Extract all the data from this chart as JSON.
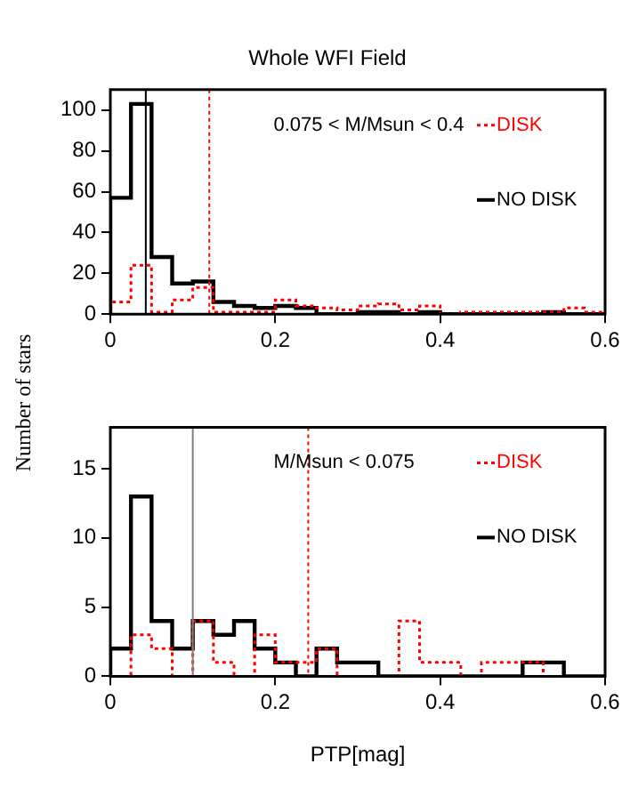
{
  "chart_data": [
    {
      "type": "histogram",
      "title": "Whole WFI Field",
      "ylabel": "Number of stars",
      "bins": [
        0,
        0.025,
        0.05,
        0.075,
        0.1,
        0.125,
        0.15,
        0.175,
        0.2,
        0.225,
        0.25,
        0.275,
        0.3,
        0.325,
        0.35,
        0.375,
        0.4,
        0.425,
        0.45,
        0.475,
        0.5,
        0.525,
        0.55,
        0.575,
        0.6
      ],
      "series": [
        {
          "name": "DISK",
          "color": "#ff0000",
          "line_style": "dotted",
          "values": [
            6,
            24,
            1,
            7,
            13,
            1,
            1,
            1,
            7,
            4,
            3,
            2,
            4,
            5,
            2,
            4,
            0,
            1,
            1,
            1,
            1,
            1,
            3,
            1
          ]
        },
        {
          "name": "NO DISK",
          "color": "#000000",
          "line_style": "solid",
          "values": [
            57,
            103,
            28,
            15,
            16,
            6,
            4,
            3,
            4,
            3,
            0,
            0,
            1,
            1,
            0,
            1,
            0,
            0,
            0,
            0,
            0,
            1,
            0,
            0
          ]
        }
      ],
      "xlim": [
        0,
        0.6
      ],
      "xticks": [
        0,
        0.2,
        0.4,
        0.6
      ],
      "ylim": [
        0,
        110
      ],
      "yticks": [
        0,
        20,
        40,
        60,
        80,
        100
      ],
      "grid": false,
      "legend": "top right",
      "ref_lines": [
        {
          "axis": "x",
          "value": 0.043,
          "color": "#000000",
          "line_style": "solid"
        },
        {
          "axis": "x",
          "value": 0.12,
          "color": "#ff0000",
          "line_style": "dotted"
        }
      ],
      "annotations": [
        "0.075 < M/Msun < 0.4"
      ]
    },
    {
      "type": "histogram",
      "xlabel": "PTP[mag]",
      "bins": [
        0,
        0.025,
        0.05,
        0.075,
        0.1,
        0.125,
        0.15,
        0.175,
        0.2,
        0.225,
        0.25,
        0.275,
        0.3,
        0.325,
        0.35,
        0.375,
        0.4,
        0.425,
        0.45,
        0.475,
        0.5,
        0.525,
        0.55,
        0.575,
        0.6
      ],
      "series": [
        {
          "name": "DISK",
          "color": "#ff0000",
          "line_style": "dotted",
          "values": [
            0,
            3,
            2,
            0,
            4,
            1,
            0,
            3,
            1,
            1,
            2,
            0,
            0,
            0,
            4,
            1,
            1,
            0,
            1,
            1,
            1,
            0,
            0,
            0
          ]
        },
        {
          "name": "NO DISK",
          "color": "#000000",
          "line_style": "solid",
          "values": [
            2,
            13,
            4,
            2,
            4,
            3,
            4,
            2,
            1,
            0,
            2,
            1,
            1,
            0,
            0,
            0,
            0,
            0,
            0,
            0,
            1,
            1,
            0,
            0
          ]
        }
      ],
      "xlim": [
        0,
        0.6
      ],
      "xticks": [
        0,
        0.2,
        0.4,
        0.6
      ],
      "ylim": [
        0,
        18
      ],
      "yticks": [
        0,
        5,
        10,
        15
      ],
      "grid": false,
      "legend": "top right",
      "ref_lines": [
        {
          "axis": "x",
          "value": 0.1,
          "color": "#808080",
          "line_style": "solid"
        },
        {
          "axis": "x",
          "value": 0.24,
          "color": "#ff0000",
          "line_style": "dotted"
        }
      ],
      "annotations": [
        "M/Msun < 0.075"
      ]
    }
  ]
}
